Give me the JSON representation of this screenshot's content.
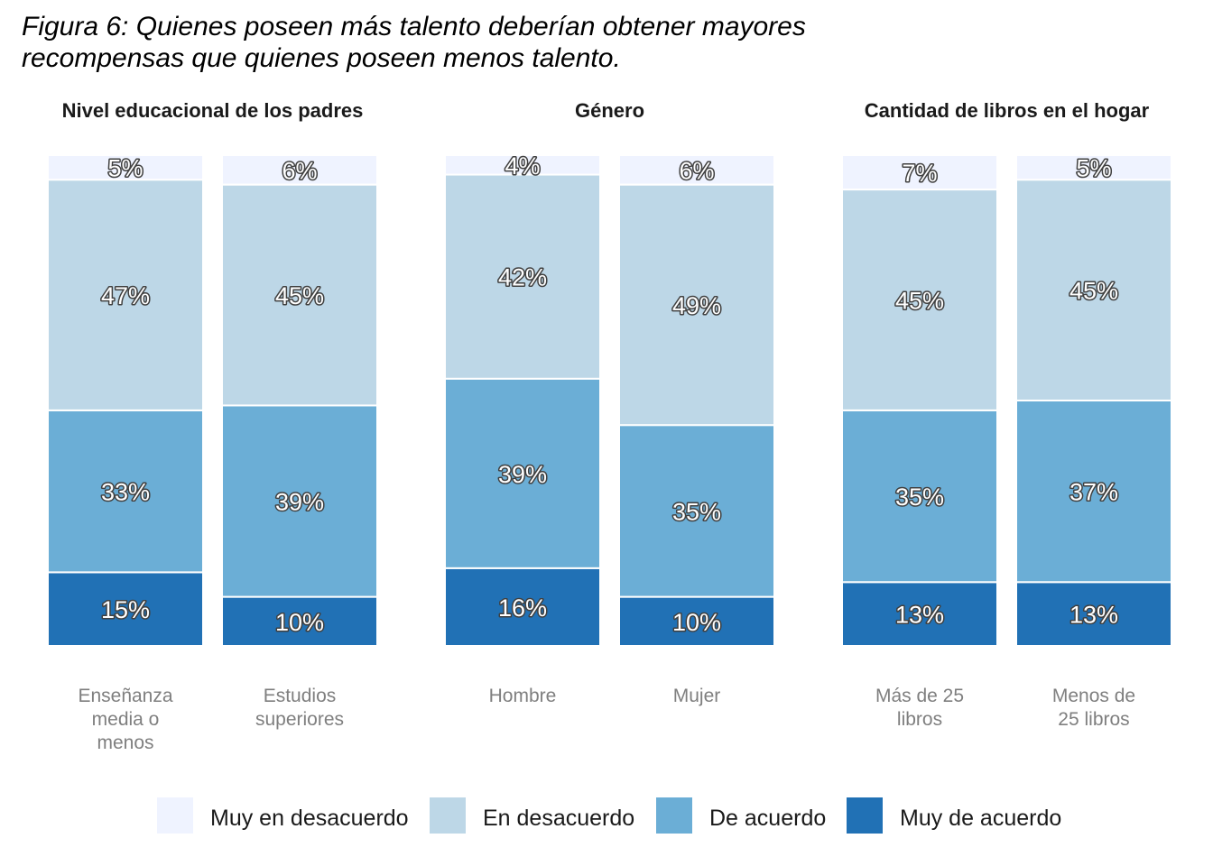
{
  "title": "Figura 6: Quienes poseen más talento deberían obtener mayores\n recompensas que quienes poseen menos talento.",
  "chart_data": {
    "type": "bar",
    "stacked": true,
    "title": "Figura 6: Quienes poseen más talento deberían obtener mayores recompensas que quienes poseen menos talento.",
    "ylim": [
      0,
      100
    ],
    "grid": false,
    "legend_position": "bottom",
    "series": [
      {
        "name": "Muy en desacuerdo",
        "color": "#eff3ff"
      },
      {
        "name": "En desacuerdo",
        "color": "#bdd7e7"
      },
      {
        "name": "De acuerdo",
        "color": "#6baed6"
      },
      {
        "name": "Muy de acuerdo",
        "color": "#2171b5"
      }
    ],
    "facets": [
      {
        "title": "Nivel educacional de los padres",
        "bars": [
          {
            "label": "Enseñanza\nmedia o\nmenos",
            "values": {
              "Muy de acuerdo": 15,
              "De acuerdo": 33,
              "En desacuerdo": 47,
              "Muy en desacuerdo": 5
            }
          },
          {
            "label": "Estudios\nsuperiores",
            "values": {
              "Muy de acuerdo": 10,
              "De acuerdo": 39,
              "En desacuerdo": 45,
              "Muy en desacuerdo": 6
            }
          }
        ]
      },
      {
        "title": "Género",
        "bars": [
          {
            "label": "Hombre",
            "values": {
              "Muy de acuerdo": 16,
              "De acuerdo": 39,
              "En desacuerdo": 42,
              "Muy en desacuerdo": 4
            }
          },
          {
            "label": "Mujer",
            "values": {
              "Muy de acuerdo": 10,
              "De acuerdo": 35,
              "En desacuerdo": 49,
              "Muy en desacuerdo": 6
            }
          }
        ]
      },
      {
        "title": "Cantidad de libros en el hogar",
        "bars": [
          {
            "label": "Más de 25\nlibros",
            "values": {
              "Muy de acuerdo": 13,
              "De acuerdo": 35,
              "En desacuerdo": 45,
              "Muy en desacuerdo": 7
            }
          },
          {
            "label": "Menos de\n25 libros",
            "values": {
              "Muy de acuerdo": 13,
              "De acuerdo": 37,
              "En desacuerdo": 45,
              "Muy en desacuerdo": 5
            }
          }
        ]
      }
    ]
  }
}
